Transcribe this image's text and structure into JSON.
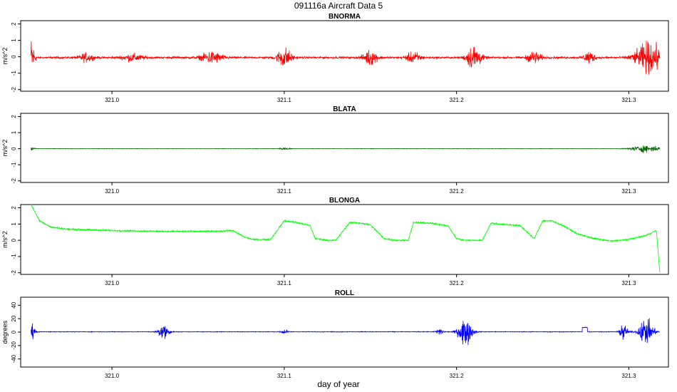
{
  "page": {
    "title": "091116a   Aircraft Data 5",
    "xlabel": "day of year"
  },
  "chart_data": [
    {
      "type": "line",
      "title": "BNORMA",
      "ylabel": "m/s^2",
      "color": "#ff0000",
      "xlim": [
        320.947,
        321.323
      ],
      "ylim": [
        -2.1,
        2.2
      ],
      "xticks": [
        321.0,
        321.1,
        321.2,
        321.3
      ],
      "xtick_labels": [
        "321.0",
        "321.1",
        "321.2",
        "321.3"
      ],
      "yticks": [
        -2,
        -1,
        0,
        1,
        2
      ],
      "ytick_labels": [
        "-2",
        "-1",
        "0",
        "1",
        "2"
      ],
      "x_range": [
        320.953,
        321.318
      ],
      "baseline": -0.05,
      "noise": 0.05,
      "features": [
        {
          "x": 320.953,
          "w": 0.002,
          "amp": 1.6
        },
        {
          "x": 320.985,
          "w": 0.004,
          "amp": 0.35
        },
        {
          "x": 321.012,
          "w": 0.006,
          "amp": 0.3
        },
        {
          "x": 321.058,
          "w": 0.006,
          "amp": 0.5
        },
        {
          "x": 321.1,
          "w": 0.004,
          "amp": 0.85
        },
        {
          "x": 321.15,
          "w": 0.004,
          "amp": 0.6
        },
        {
          "x": 321.175,
          "w": 0.004,
          "amp": 0.45
        },
        {
          "x": 321.21,
          "w": 0.004,
          "amp": 1.1
        },
        {
          "x": 321.245,
          "w": 0.004,
          "amp": 0.5
        },
        {
          "x": 321.277,
          "w": 0.003,
          "amp": 0.55
        },
        {
          "x": 321.312,
          "w": 0.008,
          "amp": 1.3
        }
      ]
    },
    {
      "type": "line",
      "title": "BLATA",
      "ylabel": "m/s^2",
      "color": "#006400",
      "xlim": [
        320.947,
        321.323
      ],
      "ylim": [
        -2.1,
        2.2
      ],
      "xticks": [
        321.0,
        321.1,
        321.2,
        321.3
      ],
      "xtick_labels": [
        "321.0",
        "321.1",
        "321.2",
        "321.3"
      ],
      "yticks": [
        -2,
        -1,
        0,
        1,
        2
      ],
      "ytick_labels": [
        "-2",
        "-1",
        "0",
        "1",
        "2"
      ],
      "x_range": [
        320.953,
        321.318
      ],
      "baseline": 0.0,
      "noise": 0.01,
      "features": [
        {
          "x": 320.953,
          "w": 0.002,
          "amp": 0.12
        },
        {
          "x": 321.1,
          "w": 0.003,
          "amp": 0.08
        },
        {
          "x": 321.31,
          "w": 0.008,
          "amp": 0.3
        }
      ]
    },
    {
      "type": "line",
      "title": "BLONGA",
      "ylabel": "m/s^2",
      "color": "#00ff00",
      "xlim": [
        320.947,
        321.323
      ],
      "ylim": [
        -2.1,
        2.2
      ],
      "xticks": [
        321.0,
        321.1,
        321.2,
        321.3
      ],
      "xtick_labels": [
        "321.0",
        "321.1",
        "321.2",
        "321.3"
      ],
      "yticks": [
        -2,
        -1,
        0,
        1,
        2
      ],
      "ytick_labels": [
        "-2",
        "-1",
        "0",
        "1",
        "2"
      ],
      "x_range": [
        320.953,
        321.318
      ],
      "noise": 0.04,
      "x": [
        320.953,
        320.958,
        320.965,
        320.975,
        321.0,
        321.03,
        321.06,
        321.07,
        321.077,
        321.082,
        321.092,
        321.1,
        321.107,
        321.115,
        321.118,
        321.125,
        321.13,
        321.138,
        321.145,
        321.15,
        321.158,
        321.165,
        321.172,
        321.175,
        321.185,
        321.195,
        321.2,
        321.205,
        321.215,
        321.22,
        321.225,
        321.237,
        321.245,
        321.25,
        321.255,
        321.262,
        321.27,
        321.28,
        321.29,
        321.3,
        321.31,
        321.316,
        321.318
      ],
      "y": [
        2.2,
        1.2,
        0.8,
        0.68,
        0.6,
        0.55,
        0.55,
        0.6,
        0.2,
        0.05,
        0.05,
        1.2,
        1.1,
        0.9,
        0.1,
        0.0,
        0.0,
        1.1,
        1.05,
        0.95,
        0.1,
        0.0,
        0.0,
        1.1,
        1.05,
        0.9,
        0.1,
        0.0,
        0.0,
        1.05,
        1.0,
        0.9,
        0.1,
        1.2,
        1.2,
        0.9,
        0.4,
        0.1,
        -0.05,
        0.05,
        0.3,
        0.6,
        -2.0
      ]
    },
    {
      "type": "line",
      "title": "ROLL",
      "ylabel": "degrees",
      "color": "#0000ff",
      "xlim": [
        320.947,
        321.323
      ],
      "ylim": [
        -52,
        52
      ],
      "xticks": [
        321.0,
        321.1,
        321.2,
        321.3
      ],
      "xtick_labels": [
        "321.0",
        "321.1",
        "321.2",
        "321.3"
      ],
      "yticks": [
        -40,
        -20,
        0,
        20,
        40
      ],
      "ytick_labels": [
        "-40",
        "-20",
        "0",
        "20",
        "40"
      ],
      "x_range": [
        320.953,
        321.318
      ],
      "baseline": 0.5,
      "noise": 0.4,
      "features": [
        {
          "x": 320.953,
          "w": 0.002,
          "amp": 20
        },
        {
          "x": 321.03,
          "w": 0.003,
          "amp": 16
        },
        {
          "x": 321.1,
          "w": 0.002,
          "amp": 5
        },
        {
          "x": 321.19,
          "w": 0.002,
          "amp": 8
        },
        {
          "x": 321.205,
          "w": 0.004,
          "amp": 27
        },
        {
          "x": 321.297,
          "w": 0.002,
          "amp": 18
        },
        {
          "x": 321.31,
          "w": 0.004,
          "amp": 27
        }
      ],
      "segments": [
        {
          "x0": 321.273,
          "x1": 321.276,
          "y": 7
        }
      ]
    }
  ]
}
